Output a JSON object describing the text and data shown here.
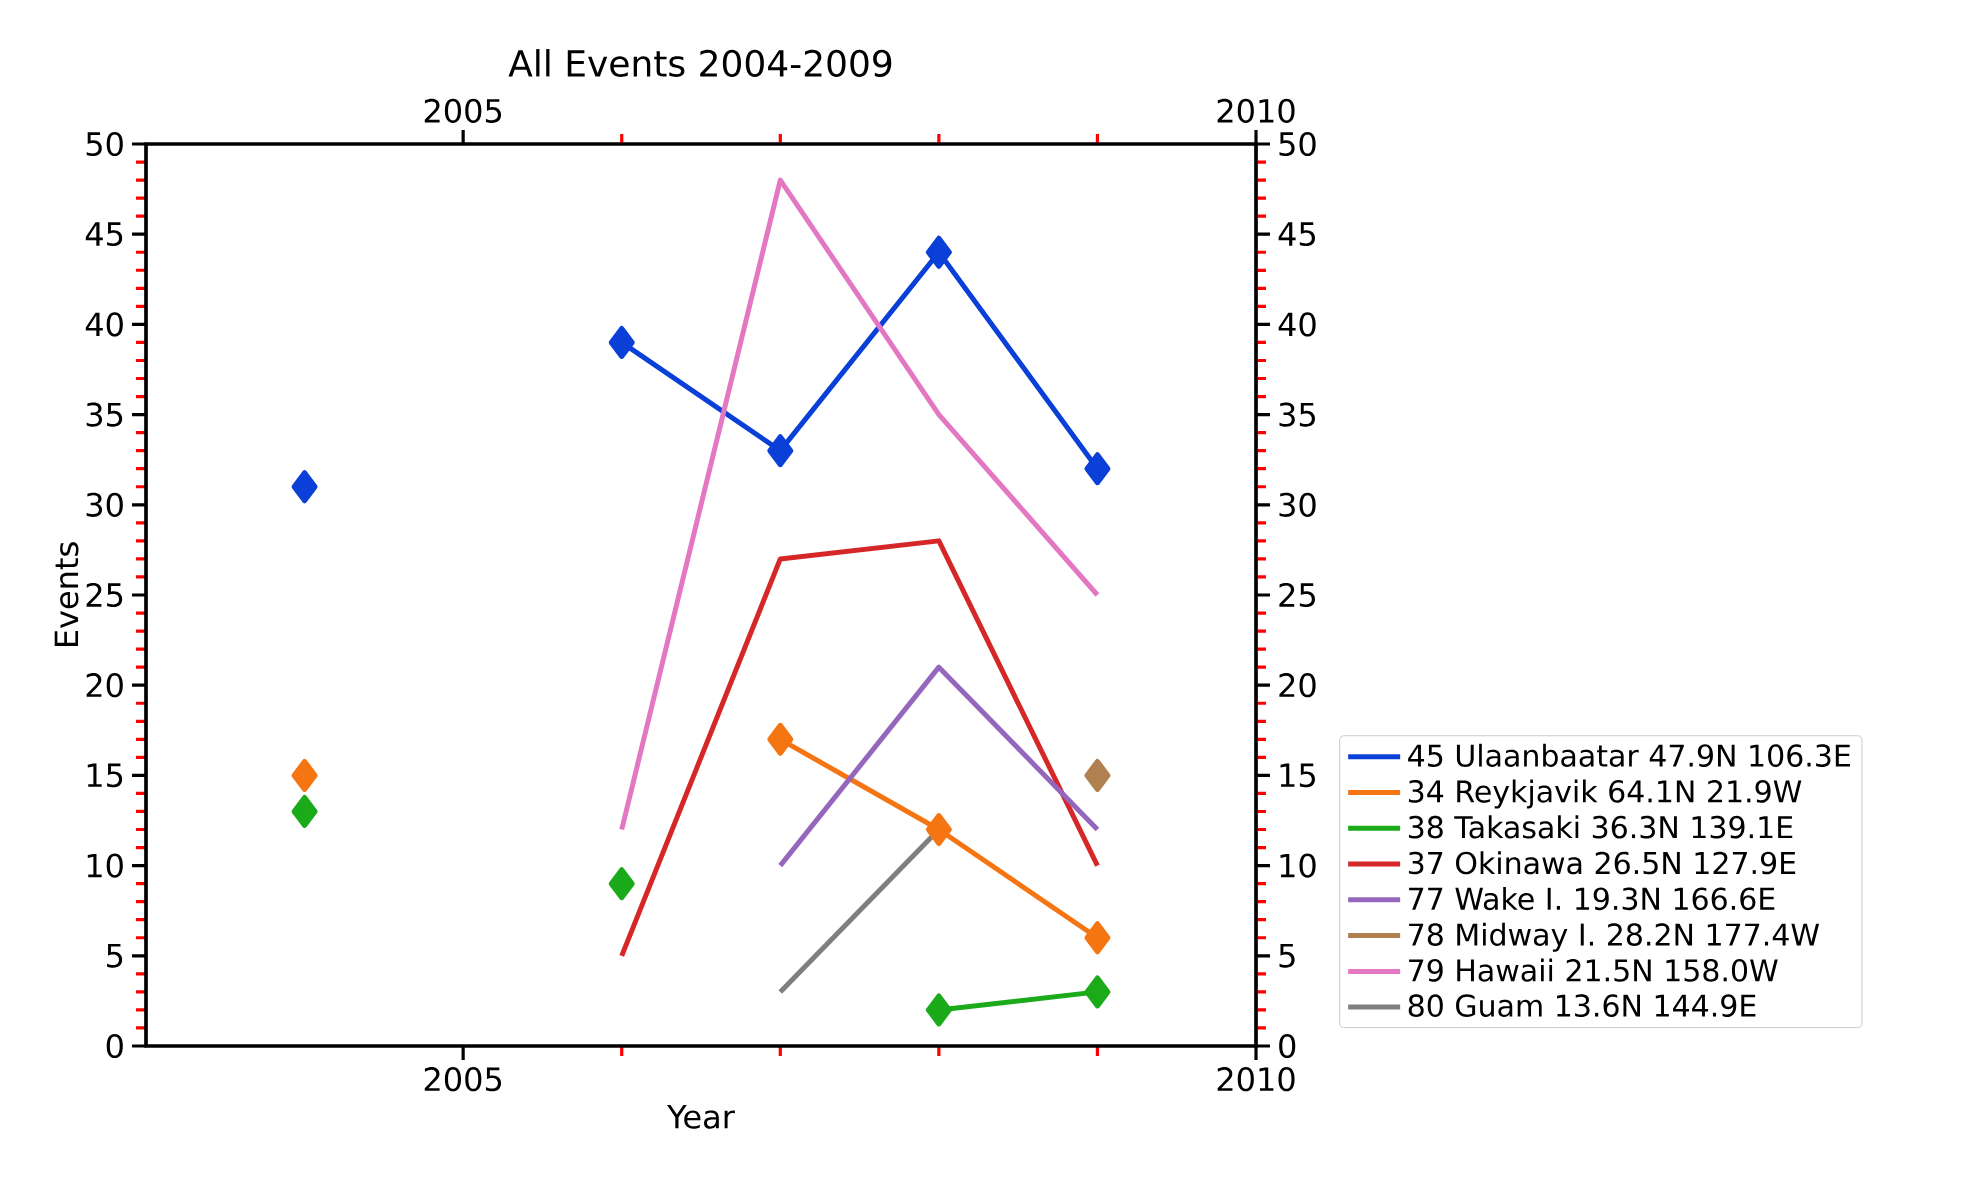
{
  "chart_data": {
    "type": "line",
    "title": "All Events 2004-2009",
    "xlabel": "Year",
    "ylabel": "Events",
    "x": [
      2004,
      2005,
      2006,
      2007,
      2008,
      2009
    ],
    "xlim": [
      2003,
      2010
    ],
    "xticks": [
      2005,
      2010
    ],
    "x2lim": [
      2003,
      2010
    ],
    "x2ticks": [
      2005,
      2010
    ],
    "ylim": [
      0,
      50
    ],
    "yticks": [
      0,
      5,
      10,
      15,
      20,
      25,
      30,
      35,
      40,
      45,
      50
    ],
    "y2lim": [
      0,
      50
    ],
    "y2ticks": [
      0,
      5,
      10,
      15,
      20,
      25,
      30,
      35,
      40,
      45,
      50
    ],
    "grid": false,
    "legend": "right",
    "series": [
      {
        "name": "45 Ulaanbaatar 47.9N 106.3E",
        "color": "#0a3fd8",
        "marker": "diamond",
        "values": [
          31,
          null,
          39,
          33,
          44,
          32
        ]
      },
      {
        "name": "34 Reykjavik 64.1N 21.9W",
        "color": "#f57512",
        "marker": "diamond",
        "values": [
          15,
          null,
          null,
          17,
          12,
          6
        ]
      },
      {
        "name": "38 Takasaki 36.3N 139.1E",
        "color": "#1aaa1a",
        "marker": "diamond",
        "values": [
          13,
          null,
          9,
          null,
          2,
          3
        ]
      },
      {
        "name": "37 Okinawa 26.5N 127.9E",
        "color": "#d62728",
        "marker": "none",
        "values": [
          null,
          null,
          5,
          27,
          28,
          10
        ]
      },
      {
        "name": "77 Wake I. 19.3N 166.6E",
        "color": "#9467bd",
        "marker": "none",
        "values": [
          null,
          null,
          null,
          10,
          21,
          12
        ]
      },
      {
        "name": "78 Midway I. 28.2N 177.4W",
        "color": "#b08050",
        "marker": "diamond",
        "values": [
          null,
          null,
          null,
          null,
          null,
          15
        ]
      },
      {
        "name": "79 Hawaii 21.5N 158.0W",
        "color": "#e377c2",
        "marker": "none",
        "values": [
          null,
          null,
          12,
          48,
          35,
          25
        ]
      },
      {
        "name": "80 Guam 13.6N 144.9E",
        "color": "#7f7f7f",
        "marker": "none",
        "values": [
          null,
          null,
          null,
          3,
          12,
          null
        ]
      }
    ]
  }
}
